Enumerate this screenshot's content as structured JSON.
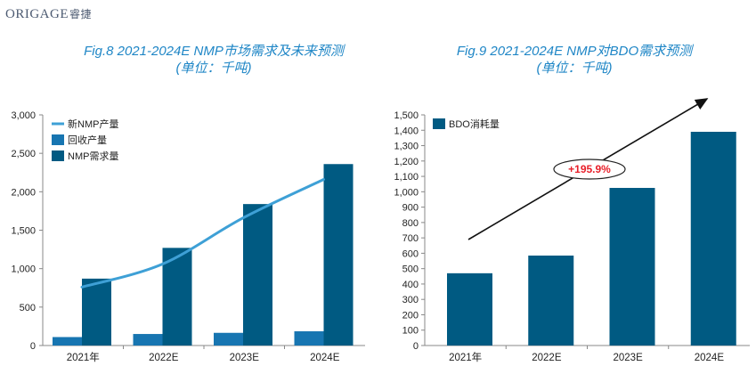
{
  "brand": {
    "name": "ORIGAGE",
    "cn": "睿捷"
  },
  "colors": {
    "dark_bar": "#005a82",
    "light_bar": "#1775b1",
    "line": "#3ea0d6",
    "title": "#1f86c6",
    "annot": "#e8202a"
  },
  "chart_data": [
    {
      "type": "bar",
      "title": "Fig.8 2021-2024E NMP市场需求及未来预测",
      "subtitle": "(单位：千吨)",
      "categories": [
        "2021年",
        "2022E",
        "2023E",
        "2024E"
      ],
      "series": [
        {
          "name": "新NMP产量",
          "kind": "line",
          "values": [
            760,
            1060,
            1660,
            2160
          ]
        },
        {
          "name": "回收产量",
          "kind": "bar",
          "values": [
            110,
            150,
            165,
            185
          ]
        },
        {
          "name": "NMP需求量",
          "kind": "bar",
          "values": [
            870,
            1270,
            1840,
            2360
          ]
        }
      ],
      "yticks": [
        "0",
        "500",
        "1,000",
        "1,500",
        "2,000",
        "2,500",
        "3,000"
      ],
      "ylim": [
        0,
        3000
      ],
      "xlabel": "",
      "ylabel": "",
      "legend": "top-left"
    },
    {
      "type": "bar",
      "title": "Fig.9 2021-2024E NMP对BDO需求预测",
      "subtitle": "(单位：千吨)",
      "categories": [
        "2021年",
        "2022E",
        "2023E",
        "2024E"
      ],
      "series": [
        {
          "name": "BDO消耗量",
          "values": [
            470,
            585,
            1025,
            1390
          ]
        }
      ],
      "yticks": [
        "0",
        "100",
        "200",
        "300",
        "400",
        "500",
        "600",
        "700",
        "800",
        "900",
        "1,000",
        "1,100",
        "1,200",
        "1,300",
        "1,400",
        "1,500"
      ],
      "ylim": [
        0,
        1500
      ],
      "annotation": "+195.9%",
      "xlabel": "",
      "ylabel": "",
      "legend": "top-left"
    }
  ]
}
